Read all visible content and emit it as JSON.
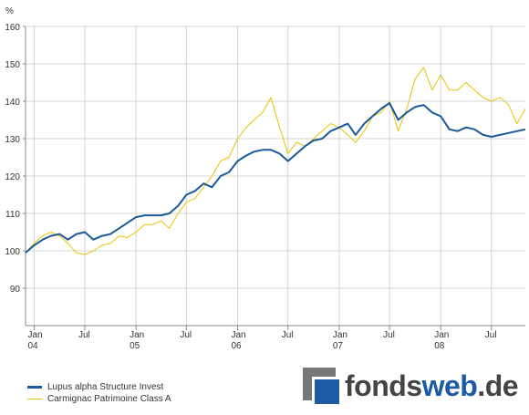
{
  "chart_data": {
    "type": "line",
    "y_unit": "%",
    "ylim": [
      80,
      160
    ],
    "y_ticks": [
      90,
      100,
      110,
      120,
      130,
      140,
      150,
      160
    ],
    "xlim": [
      "2003-12-01",
      "2008-10-31"
    ],
    "x_ticks": [
      {
        "date": "2004-01-01",
        "label": "Jan",
        "year": "04"
      },
      {
        "date": "2004-07-01",
        "label": "Jul",
        "year": ""
      },
      {
        "date": "2005-01-01",
        "label": "Jan",
        "year": "05"
      },
      {
        "date": "2005-07-01",
        "label": "Jul",
        "year": ""
      },
      {
        "date": "2006-01-01",
        "label": "Jan",
        "year": "06"
      },
      {
        "date": "2006-07-01",
        "label": "Jul",
        "year": ""
      },
      {
        "date": "2007-01-01",
        "label": "Jan",
        "year": "07"
      },
      {
        "date": "2007-07-01",
        "label": "Jul",
        "year": ""
      },
      {
        "date": "2008-01-01",
        "label": "Jan",
        "year": "08"
      },
      {
        "date": "2008-07-01",
        "label": "Jul",
        "year": ""
      }
    ],
    "grid": true,
    "legend_position": "bottom-left",
    "series": [
      {
        "name": "Lupus alpha Structure Invest",
        "color": "#1a5a99",
        "points": [
          [
            "2003-12-01",
            99.5
          ],
          [
            "2004-01-01",
            101.5
          ],
          [
            "2004-02-01",
            103
          ],
          [
            "2004-03-01",
            104
          ],
          [
            "2004-04-01",
            104.5
          ],
          [
            "2004-05-01",
            103
          ],
          [
            "2004-06-01",
            104.5
          ],
          [
            "2004-07-01",
            105
          ],
          [
            "2004-08-01",
            103
          ],
          [
            "2004-09-01",
            104
          ],
          [
            "2004-10-01",
            104.5
          ],
          [
            "2004-11-01",
            106
          ],
          [
            "2004-12-01",
            107.5
          ],
          [
            "2005-01-01",
            109
          ],
          [
            "2005-02-01",
            109.5
          ],
          [
            "2005-03-01",
            109.5
          ],
          [
            "2005-04-01",
            109.5
          ],
          [
            "2005-05-01",
            110
          ],
          [
            "2005-06-01",
            112
          ],
          [
            "2005-07-01",
            115
          ],
          [
            "2005-08-01",
            116
          ],
          [
            "2005-09-01",
            118
          ],
          [
            "2005-10-01",
            117
          ],
          [
            "2005-11-01",
            120
          ],
          [
            "2005-12-01",
            121
          ],
          [
            "2006-01-01",
            124
          ],
          [
            "2006-02-01",
            125.5
          ],
          [
            "2006-03-01",
            126.5
          ],
          [
            "2006-04-01",
            127
          ],
          [
            "2006-05-01",
            127
          ],
          [
            "2006-06-01",
            126
          ],
          [
            "2006-07-01",
            124
          ],
          [
            "2006-08-01",
            126
          ],
          [
            "2006-09-01",
            128
          ],
          [
            "2006-10-01",
            129.5
          ],
          [
            "2006-11-01",
            130
          ],
          [
            "2006-12-01",
            132
          ],
          [
            "2007-01-01",
            133
          ],
          [
            "2007-02-01",
            134
          ],
          [
            "2007-03-01",
            131
          ],
          [
            "2007-04-01",
            134
          ],
          [
            "2007-05-01",
            136
          ],
          [
            "2007-06-01",
            138
          ],
          [
            "2007-07-01",
            139.5
          ],
          [
            "2007-08-01",
            135
          ],
          [
            "2007-09-01",
            137
          ],
          [
            "2007-10-01",
            138.5
          ],
          [
            "2007-11-01",
            139
          ],
          [
            "2007-12-01",
            137
          ],
          [
            "2008-01-01",
            136
          ],
          [
            "2008-02-01",
            132.5
          ],
          [
            "2008-03-01",
            132
          ],
          [
            "2008-04-01",
            133
          ],
          [
            "2008-05-01",
            132.5
          ],
          [
            "2008-06-01",
            131
          ],
          [
            "2008-07-01",
            130.5
          ],
          [
            "2008-08-01",
            131
          ],
          [
            "2008-09-01",
            131.5
          ],
          [
            "2008-10-01",
            132
          ],
          [
            "2008-10-31",
            132.5
          ]
        ]
      },
      {
        "name": "Carmignac Patrimoine Class A",
        "color": "#e8c300",
        "points": [
          [
            "2003-12-01",
            99.5
          ],
          [
            "2004-01-01",
            102
          ],
          [
            "2004-02-01",
            104
          ],
          [
            "2004-03-01",
            105
          ],
          [
            "2004-04-01",
            104
          ],
          [
            "2004-05-01",
            102
          ],
          [
            "2004-06-01",
            99.5
          ],
          [
            "2004-07-01",
            99
          ],
          [
            "2004-08-01",
            100
          ],
          [
            "2004-09-01",
            101.5
          ],
          [
            "2004-10-01",
            102
          ],
          [
            "2004-11-01",
            104
          ],
          [
            "2004-12-01",
            103.5
          ],
          [
            "2005-01-01",
            105
          ],
          [
            "2005-02-01",
            107
          ],
          [
            "2005-03-01",
            107
          ],
          [
            "2005-04-01",
            108
          ],
          [
            "2005-05-01",
            106
          ],
          [
            "2005-06-01",
            110
          ],
          [
            "2005-07-01",
            113
          ],
          [
            "2005-08-01",
            114
          ],
          [
            "2005-09-01",
            117
          ],
          [
            "2005-10-01",
            120
          ],
          [
            "2005-11-01",
            124
          ],
          [
            "2005-12-01",
            125
          ],
          [
            "2006-01-01",
            130
          ],
          [
            "2006-02-01",
            133
          ],
          [
            "2006-03-01",
            135
          ],
          [
            "2006-04-01",
            137
          ],
          [
            "2006-05-01",
            141
          ],
          [
            "2006-06-01",
            133
          ],
          [
            "2006-07-01",
            126
          ],
          [
            "2006-08-01",
            129
          ],
          [
            "2006-09-01",
            128
          ],
          [
            "2006-10-01",
            130
          ],
          [
            "2006-11-01",
            132
          ],
          [
            "2006-12-01",
            134
          ],
          [
            "2007-01-01",
            133
          ],
          [
            "2007-02-01",
            131
          ],
          [
            "2007-03-01",
            129
          ],
          [
            "2007-04-01",
            132
          ],
          [
            "2007-05-01",
            136
          ],
          [
            "2007-06-01",
            137
          ],
          [
            "2007-07-01",
            140
          ],
          [
            "2007-08-01",
            132
          ],
          [
            "2007-09-01",
            138
          ],
          [
            "2007-10-01",
            146
          ],
          [
            "2007-11-01",
            149
          ],
          [
            "2007-12-01",
            143
          ],
          [
            "2008-01-01",
            147
          ],
          [
            "2008-02-01",
            143
          ],
          [
            "2008-03-01",
            143
          ],
          [
            "2008-04-01",
            145
          ],
          [
            "2008-05-01",
            143
          ],
          [
            "2008-06-01",
            141
          ],
          [
            "2008-07-01",
            140
          ],
          [
            "2008-08-01",
            141
          ],
          [
            "2008-09-01",
            139
          ],
          [
            "2008-10-01",
            134
          ],
          [
            "2008-10-31",
            138
          ]
        ]
      }
    ]
  },
  "logo": {
    "part1": "fonds",
    "part2": "web",
    "part3": ".de"
  }
}
